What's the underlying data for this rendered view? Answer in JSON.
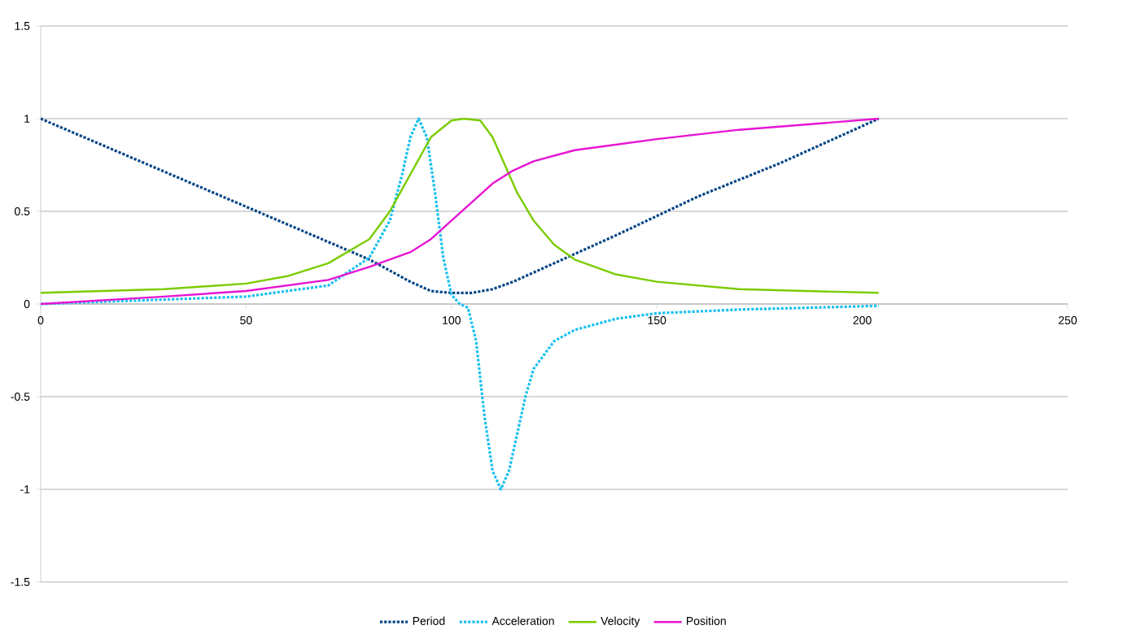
{
  "chart_data": {
    "type": "line",
    "xlim": [
      0,
      250
    ],
    "xticks": [
      0,
      50,
      100,
      150,
      200,
      250
    ],
    "ylim": [
      -1.5,
      1.5
    ],
    "yticks": [
      -1.5,
      -1,
      -0.5,
      0,
      0.5,
      1,
      1.5
    ],
    "grid": "y",
    "legend": "bottom",
    "marker": "none",
    "series": [
      {
        "name": "Period",
        "color": "#004586",
        "line_style": "dotted",
        "x": [
          0,
          20,
          40,
          60,
          80,
          90,
          95,
          100,
          105,
          110,
          115,
          120,
          140,
          160,
          180,
          204
        ],
        "values": [
          1,
          0.81,
          0.62,
          0.43,
          0.24,
          0.12,
          0.07,
          0.06,
          0.06,
          0.08,
          0.12,
          0.17,
          0.37,
          0.58,
          0.76,
          1
        ]
      },
      {
        "name": "Acceleration",
        "color": "#19c0f0",
        "line_style": "dotted",
        "x": [
          0,
          50,
          70,
          80,
          85,
          88,
          90,
          92,
          94,
          96,
          98,
          100,
          102,
          104,
          106,
          108,
          110,
          112,
          114,
          116,
          118,
          120,
          125,
          130,
          140,
          150,
          170,
          204
        ],
        "values": [
          0,
          0.04,
          0.1,
          0.25,
          0.45,
          0.7,
          0.9,
          1,
          0.9,
          0.6,
          0.25,
          0.05,
          0,
          -0.02,
          -0.2,
          -0.6,
          -0.9,
          -1,
          -0.9,
          -0.7,
          -0.5,
          -0.35,
          -0.2,
          -0.14,
          -0.08,
          -0.05,
          -0.03,
          -0.01
        ]
      },
      {
        "name": "Velocity",
        "color": "#7acc00",
        "line_style": "solid",
        "x": [
          0,
          30,
          50,
          60,
          70,
          80,
          85,
          90,
          95,
          100,
          103,
          107,
          110,
          113,
          116,
          120,
          125,
          130,
          140,
          150,
          170,
          204
        ],
        "values": [
          0.06,
          0.08,
          0.11,
          0.15,
          0.22,
          0.35,
          0.5,
          0.7,
          0.9,
          0.99,
          1,
          0.99,
          0.9,
          0.75,
          0.6,
          0.45,
          0.32,
          0.24,
          0.16,
          0.12,
          0.08,
          0.06
        ]
      },
      {
        "name": "Position",
        "color": "#e614d4",
        "line_style": "solid",
        "x": [
          0,
          30,
          50,
          70,
          80,
          90,
          95,
          100,
          105,
          110,
          115,
          120,
          130,
          150,
          170,
          204
        ],
        "values": [
          0,
          0.04,
          0.07,
          0.13,
          0.2,
          0.28,
          0.35,
          0.45,
          0.55,
          0.65,
          0.72,
          0.77,
          0.83,
          0.89,
          0.94,
          1
        ]
      }
    ]
  }
}
